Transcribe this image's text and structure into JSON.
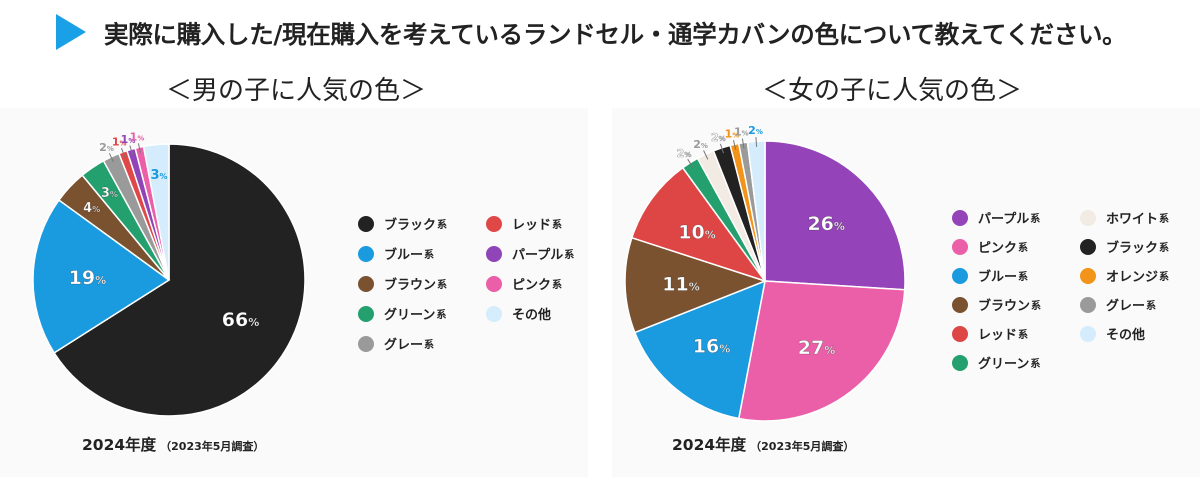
{
  "header": {
    "title": "実際に購入した/現在購入を考えているランドセル・通学カバンの色について教えてください。",
    "accent_color": "#1aa0e6",
    "icon": "triangle-arrow-icon"
  },
  "chart_data": [
    {
      "type": "pie",
      "title": "＜男の子に人気の色＞",
      "footer": "2024年度",
      "footer_note": "（2023年5月調査）",
      "slices": [
        {
          "label": "ブラック",
          "suffix": "系",
          "value": 66,
          "color": "#222222",
          "label_color": "#ffffff"
        },
        {
          "label": "ブルー",
          "suffix": "系",
          "value": 19,
          "color": "#1a9be0",
          "label_color": "#ffffff"
        },
        {
          "label": "ブラウン",
          "suffix": "系",
          "value": 4,
          "color": "#7b5230",
          "label_color": "#ffffff"
        },
        {
          "label": "グリーン",
          "suffix": "系",
          "value": 3,
          "color": "#23a06e",
          "label_color": "#ffffff"
        },
        {
          "label": "グレー",
          "suffix": "系",
          "value": 2,
          "color": "#9a9a9a",
          "label_color": "#9a9a9a"
        },
        {
          "label": "レッド",
          "suffix": "系",
          "value": 1,
          "color": "#e04848",
          "label_color": "#e04848"
        },
        {
          "label": "パープル",
          "suffix": "系",
          "value": 1,
          "color": "#8f44b8",
          "label_color": "#8f44b8"
        },
        {
          "label": "ピンク",
          "suffix": "系",
          "value": 1,
          "color": "#ea5fa8",
          "label_color": "#ea5fa8"
        },
        {
          "label": "その他",
          "suffix": "",
          "value": 3,
          "color": "#d4ecfb",
          "label_color": "#1a9be0"
        }
      ],
      "legend": [
        {
          "label": "ブラック",
          "suffix": "系",
          "color": "#222222"
        },
        {
          "label": "ブルー",
          "suffix": "系",
          "color": "#1a9be0"
        },
        {
          "label": "ブラウン",
          "suffix": "系",
          "color": "#7b5230"
        },
        {
          "label": "グリーン",
          "suffix": "系",
          "color": "#23a06e"
        },
        {
          "label": "グレー",
          "suffix": "系",
          "color": "#9a9a9a"
        },
        {
          "label": "レッド",
          "suffix": "系",
          "color": "#e04848"
        },
        {
          "label": "パープル",
          "suffix": "系",
          "color": "#8f44b8"
        },
        {
          "label": "ピンク",
          "suffix": "系",
          "color": "#ea5fa8"
        },
        {
          "label": "その他",
          "suffix": "",
          "color": "#d4ecfb"
        }
      ],
      "legend_columns": 2
    },
    {
      "type": "pie",
      "title": "＜女の子に人気の色＞",
      "footer": "2024年度",
      "footer_note": "（2023年5月調査）",
      "slices": [
        {
          "label": "パープル",
          "suffix": "系",
          "value": 26,
          "color": "#9444b8",
          "label_color": "#ffffff"
        },
        {
          "label": "ピンク",
          "suffix": "系",
          "value": 27,
          "color": "#ea5fa8",
          "label_color": "#ffffff"
        },
        {
          "label": "ブルー",
          "suffix": "系",
          "value": 16,
          "color": "#1a9be0",
          "label_color": "#ffffff"
        },
        {
          "label": "ブラウン",
          "suffix": "系",
          "value": 11,
          "color": "#7b5230",
          "label_color": "#ffffff"
        },
        {
          "label": "レッド",
          "suffix": "系",
          "value": 10,
          "color": "#de4545",
          "label_color": "#ffffff"
        },
        {
          "label": "グリーン",
          "suffix": "系",
          "value": 2,
          "color": "#23a06e",
          "label_color": "#ffffff"
        },
        {
          "label": "ホワイト",
          "suffix": "系",
          "value": 2,
          "color": "#f1ebe4",
          "label_color": "#999999"
        },
        {
          "label": "ブラック",
          "suffix": "系",
          "value": 2,
          "color": "#222222",
          "label_color": "#ffffff"
        },
        {
          "label": "オレンジ",
          "suffix": "系",
          "value": 1,
          "color": "#f2931a",
          "label_color": "#f2931a"
        },
        {
          "label": "グレー",
          "suffix": "系",
          "value": 1,
          "color": "#9a9a9a",
          "label_color": "#9a9a9a"
        },
        {
          "label": "その他",
          "suffix": "",
          "value": 2,
          "color": "#d4ecfb",
          "label_color": "#1a9be0"
        }
      ],
      "legend": [
        {
          "label": "パープル",
          "suffix": "系",
          "color": "#9444b8"
        },
        {
          "label": "ピンク",
          "suffix": "系",
          "color": "#ea5fa8"
        },
        {
          "label": "ブルー",
          "suffix": "系",
          "color": "#1a9be0"
        },
        {
          "label": "ブラウン",
          "suffix": "系",
          "color": "#7b5230"
        },
        {
          "label": "レッド",
          "suffix": "系",
          "color": "#de4545"
        },
        {
          "label": "グリーン",
          "suffix": "系",
          "color": "#23a06e"
        },
        {
          "label": "ホワイト",
          "suffix": "系",
          "color": "#f1ebe4"
        },
        {
          "label": "ブラック",
          "suffix": "系",
          "color": "#222222"
        },
        {
          "label": "オレンジ",
          "suffix": "系",
          "color": "#f2931a"
        },
        {
          "label": "グレー",
          "suffix": "系",
          "color": "#9a9a9a"
        },
        {
          "label": "その他",
          "suffix": "",
          "color": "#d4ecfb"
        }
      ],
      "legend_columns": 2
    }
  ]
}
